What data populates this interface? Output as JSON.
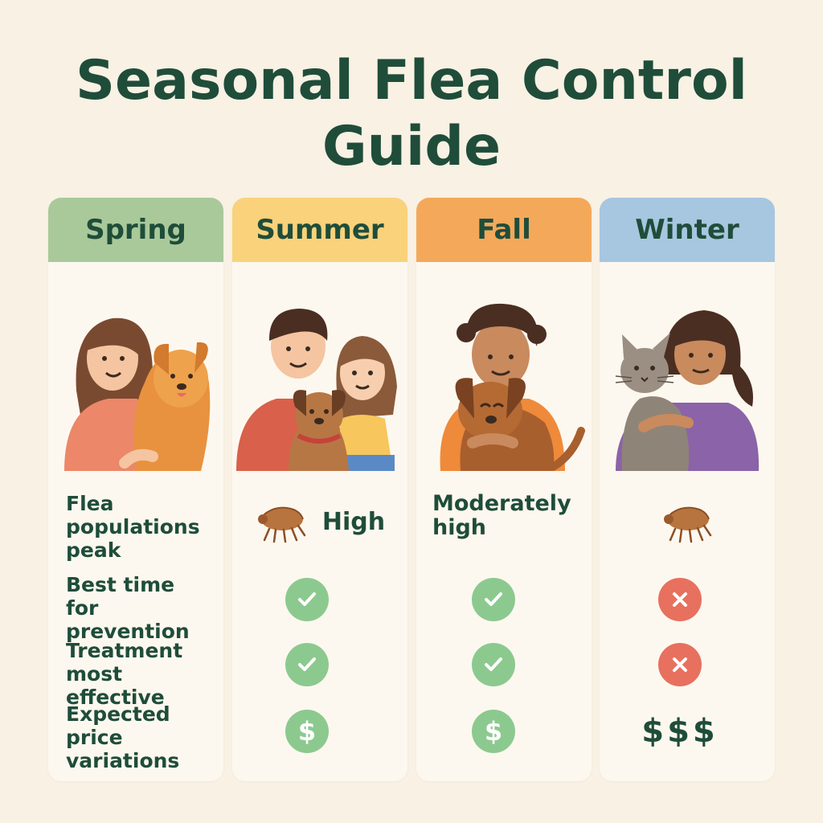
{
  "title": {
    "line1": "Seasonal Flea Control",
    "line2": "Guide"
  },
  "colors": {
    "spring": "#a9c99a",
    "summer": "#f9d27b",
    "fall": "#f4a85a",
    "winter": "#a7c6e0",
    "check": "#8cc98f",
    "cross": "#e8705e",
    "text": "#1f4d3a"
  },
  "seasons": [
    {
      "name": "Spring",
      "illustration": "woman-with-golden-dog-illustration"
    },
    {
      "name": "Summer",
      "illustration": "man-and-girl-with-dog-illustration"
    },
    {
      "name": "Fall",
      "illustration": "boy-hugging-brown-dog-illustration"
    },
    {
      "name": "Winter",
      "illustration": "woman-holding-gray-cat-illustration"
    }
  ],
  "rows": [
    {
      "label": "Flea populations peak",
      "label_lines": [
        "Flea",
        "populations",
        "peak"
      ],
      "cells": [
        {
          "icon": "flea-icon",
          "text": "High"
        },
        {
          "text": "Moderately high",
          "lines": [
            "Moderately",
            "high"
          ]
        },
        {
          "icon": "flea-icon"
        }
      ]
    },
    {
      "label": "Best time for prevention",
      "label_lines": [
        "Best time",
        "for prevention"
      ],
      "cells": [
        {
          "icon": "check-icon"
        },
        {
          "icon": "check-icon"
        },
        {
          "icon": "cross-icon"
        }
      ]
    },
    {
      "label": "Treatment most effective",
      "label_lines": [
        "Treatment",
        "most effective"
      ],
      "cells": [
        {
          "icon": "check-icon"
        },
        {
          "icon": "check-icon"
        },
        {
          "icon": "cross-icon"
        }
      ]
    },
    {
      "label": "Expected price variations",
      "label_lines": [
        "Expected",
        "price",
        "variations"
      ],
      "cells": [
        {
          "icon": "dollar-icon",
          "text": "$"
        },
        {
          "icon": "dollar-icon",
          "text": "$"
        },
        {
          "text": "$$$"
        }
      ]
    }
  ]
}
